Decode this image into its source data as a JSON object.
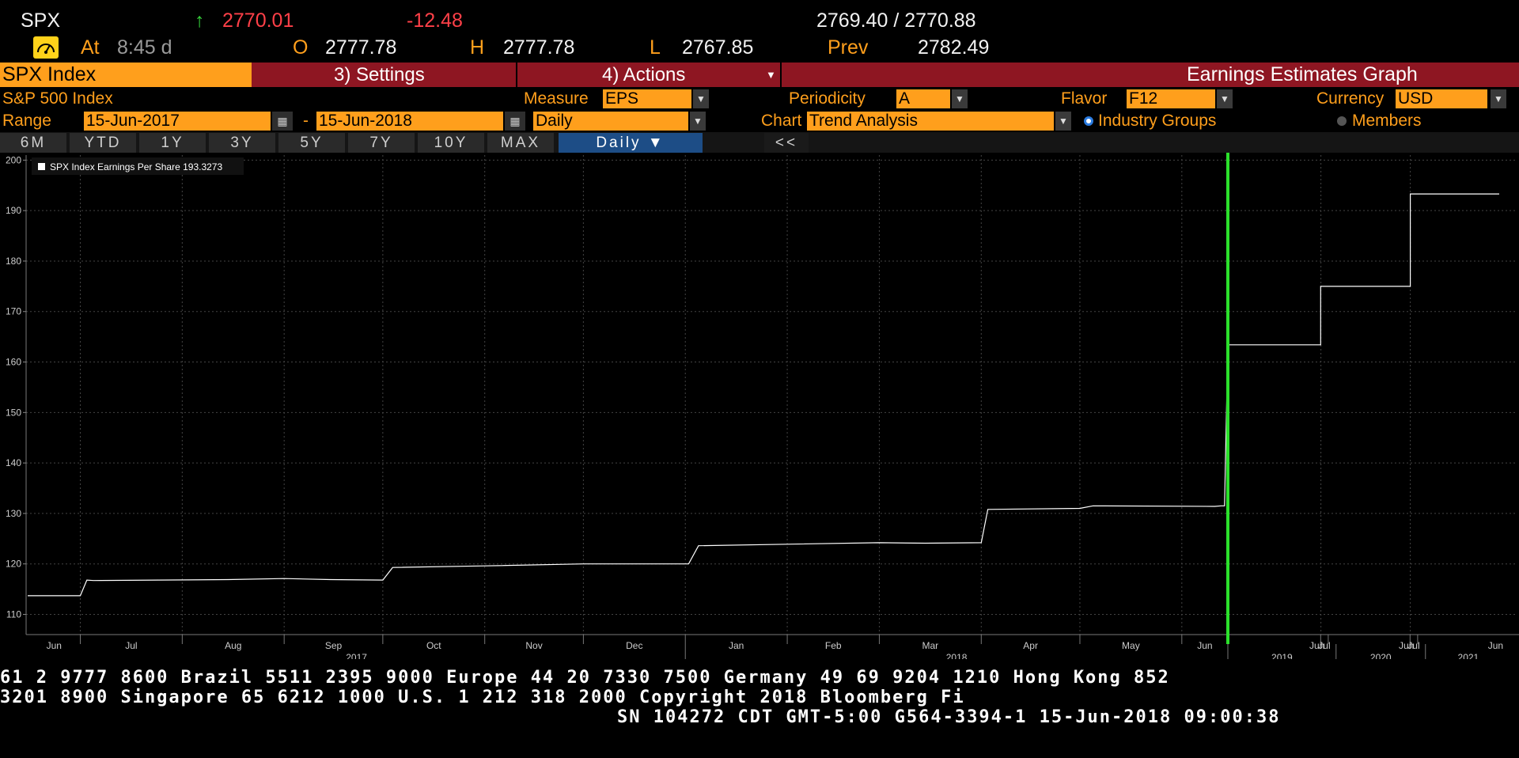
{
  "ticker": {
    "symbol": "SPX",
    "arrow": "↑",
    "last": "2770.01",
    "change": "-12.48",
    "bid_ask": "2769.40 / 2770.88",
    "at_label": "At",
    "time": "8:45 d",
    "open_label": "O",
    "open": "2777.78",
    "high_label": "H",
    "high": "2777.78",
    "low_label": "L",
    "low": "2767.85",
    "prev_label": "Prev",
    "prev": "2782.49"
  },
  "menu": {
    "security": "SPX Index",
    "settings": "3) Settings",
    "actions": "4) Actions",
    "title": "Earnings Estimates Graph"
  },
  "settings": {
    "index_name": "S&P 500 Index",
    "measure_label": "Measure",
    "measure": "EPS",
    "periodicity_label": "Periodicity",
    "periodicity": "A",
    "flavor_label": "Flavor",
    "flavor": "F12",
    "currency_label": "Currency",
    "currency": "USD",
    "range_label": "Range",
    "range_start": "15-Jun-2017",
    "range_dash": "-",
    "range_end": "15-Jun-2018",
    "frequency": "Daily",
    "chart_label": "Chart",
    "chart_type": "Trend Analysis",
    "radio_industry": "Industry Groups",
    "radio_members": "Members"
  },
  "range_buttons": [
    "6M",
    "YTD",
    "1Y",
    "3Y",
    "5Y",
    "7Y",
    "10Y",
    "MAX"
  ],
  "freq_button": "Daily ▼",
  "collapse_button": "<<",
  "colors": {
    "orange": "#ff9f1c",
    "menu_red": "#8e1622",
    "green_marker": "#2be02b",
    "up": "#35d03a",
    "down": "#ff4048"
  },
  "footer": {
    "line1": "61 2 9777 8600 Brazil 5511 2395 9000 Europe 44 20 7330 7500 Germany 49 69 9204 1210 Hong Kong 852",
    "line2": " 3201 8900      Singapore 65 6212 1000       U.S. 1 212 318 2000        Copyright 2018 Bloomberg Fi",
    "line3": "SN 104272 CDT  GMT-5:00 G564-3394-1 15-Jun-2018 09:00:38"
  },
  "chart_data": {
    "type": "line",
    "legend": "SPX Index Earnings Per Share 193.3273",
    "ylim": [
      106,
      201
    ],
    "y_ticks": [
      110,
      120,
      130,
      140,
      150,
      160,
      170,
      180,
      190,
      200
    ],
    "month_labels": [
      "Jun",
      "Jul",
      "Aug",
      "Sep",
      "Oct",
      "Nov",
      "Dec",
      "Jan",
      "Feb",
      "Mar",
      "Apr",
      "May",
      "Jun"
    ],
    "forecast_labels": [
      "Jun",
      "Jul",
      "Jun",
      "Jul",
      "Jun"
    ],
    "year_labels": [
      "2017",
      "2018",
      "2019",
      "2020",
      "2021"
    ],
    "history": {
      "dates": [
        "2017-06-15",
        "2017-07-01",
        "2017-07-03",
        "2017-07-05",
        "2017-08-15",
        "2017-09-01",
        "2017-09-15",
        "2017-10-01",
        "2017-10-04",
        "2017-11-01",
        "2017-12-01",
        "2018-01-02",
        "2018-01-05",
        "2018-02-01",
        "2018-03-01",
        "2018-03-15",
        "2018-04-01",
        "2018-04-03",
        "2018-05-01",
        "2018-05-05",
        "2018-06-11",
        "2018-06-13"
      ],
      "values": [
        113.7,
        113.7,
        116.8,
        116.7,
        116.9,
        117.1,
        116.9,
        116.8,
        119.3,
        119.6,
        120.0,
        120.0,
        123.6,
        123.9,
        124.2,
        124.1,
        124.2,
        130.8,
        131.0,
        131.5,
        131.4,
        131.5
      ]
    },
    "marker_date": "2018-06-15",
    "forecast": [
      {
        "from": "2018-06-15",
        "to": "2019-06-30",
        "value": 163.4
      },
      {
        "from": "2019-06-30",
        "to": "2020-07-01",
        "value": 175.0
      },
      {
        "from": "2020-07-01",
        "to": "2021-06-30",
        "value": 193.3
      }
    ]
  }
}
